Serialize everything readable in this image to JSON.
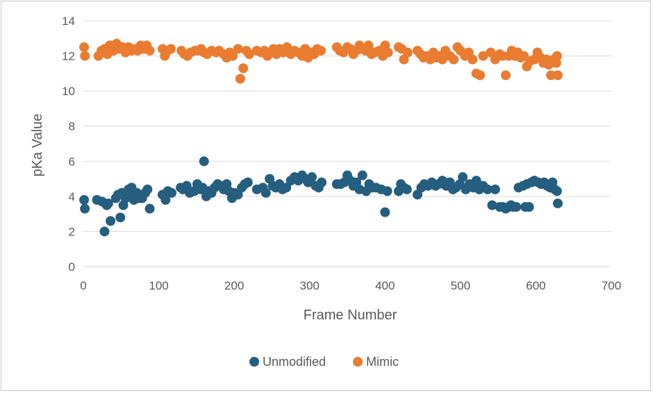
{
  "chart_data": {
    "type": "scatter",
    "title": "",
    "xlabel": "Frame Number",
    "ylabel": "pKa Value",
    "xlim": [
      0,
      700
    ],
    "ylim": [
      0,
      14
    ],
    "xticks": [
      0,
      100,
      200,
      300,
      400,
      500,
      600,
      700
    ],
    "yticks": [
      0,
      2,
      4,
      6,
      8,
      10,
      12,
      14
    ],
    "grid": "horizontal",
    "legend": "bottom",
    "colors": {
      "Unmodified": "#255e7e",
      "Mimic": "#e97c30"
    },
    "series": [
      {
        "name": "Unmodified",
        "points": [
          [
            1,
            3.8
          ],
          [
            2,
            3.3
          ],
          [
            18,
            3.8
          ],
          [
            25,
            3.7
          ],
          [
            28,
            2.0
          ],
          [
            31,
            3.5
          ],
          [
            33,
            3.6
          ],
          [
            36,
            2.6
          ],
          [
            43,
            3.9
          ],
          [
            46,
            4.1
          ],
          [
            49,
            2.8
          ],
          [
            51,
            4.2
          ],
          [
            53,
            3.5
          ],
          [
            56,
            3.9
          ],
          [
            60,
            4.4
          ],
          [
            62,
            4.2
          ],
          [
            64,
            4.5
          ],
          [
            67,
            3.8
          ],
          [
            71,
            4.2
          ],
          [
            74,
            3.9
          ],
          [
            78,
            3.9
          ],
          [
            82,
            4.2
          ],
          [
            85,
            4.4
          ],
          [
            88,
            3.3
          ],
          [
            105,
            4.1
          ],
          [
            109,
            3.8
          ],
          [
            112,
            4.3
          ],
          [
            117,
            4.2
          ],
          [
            129,
            4.5
          ],
          [
            132,
            4.4
          ],
          [
            137,
            4.6
          ],
          [
            141,
            4.2
          ],
          [
            147,
            4.3
          ],
          [
            151,
            4.7
          ],
          [
            155,
            4.4
          ],
          [
            158,
            4.5
          ],
          [
            160,
            6.0
          ],
          [
            163,
            4.0
          ],
          [
            166,
            4.3
          ],
          [
            170,
            4.2
          ],
          [
            174,
            4.5
          ],
          [
            178,
            4.7
          ],
          [
            182,
            4.6
          ],
          [
            186,
            4.4
          ],
          [
            190,
            4.7
          ],
          [
            193,
            4.3
          ],
          [
            197,
            3.9
          ],
          [
            200,
            4.2
          ],
          [
            205,
            4.1
          ],
          [
            210,
            4.5
          ],
          [
            214,
            4.7
          ],
          [
            218,
            4.8
          ],
          [
            230,
            4.4
          ],
          [
            238,
            4.5
          ],
          [
            242,
            4.2
          ],
          [
            247,
            5.0
          ],
          [
            251,
            4.6
          ],
          [
            255,
            4.5
          ],
          [
            260,
            4.7
          ],
          [
            264,
            4.4
          ],
          [
            269,
            4.5
          ],
          [
            275,
            4.9
          ],
          [
            280,
            5.1
          ],
          [
            285,
            4.9
          ],
          [
            290,
            5.2
          ],
          [
            294,
            5.0
          ],
          [
            298,
            4.8
          ],
          [
            303,
            5.1
          ],
          [
            308,
            4.6
          ],
          [
            312,
            4.5
          ],
          [
            316,
            4.8
          ],
          [
            336,
            4.7
          ],
          [
            341,
            4.7
          ],
          [
            346,
            4.8
          ],
          [
            350,
            5.2
          ],
          [
            354,
            4.9
          ],
          [
            358,
            4.6
          ],
          [
            362,
            4.8
          ],
          [
            366,
            4.4
          ],
          [
            370,
            5.2
          ],
          [
            375,
            4.3
          ],
          [
            379,
            4.7
          ],
          [
            383,
            4.5
          ],
          [
            388,
            4.5
          ],
          [
            395,
            4.4
          ],
          [
            400,
            3.1
          ],
          [
            403,
            4.3
          ],
          [
            418,
            4.3
          ],
          [
            421,
            4.7
          ],
          [
            425,
            4.5
          ],
          [
            429,
            4.4
          ],
          [
            443,
            4.1
          ],
          [
            448,
            4.5
          ],
          [
            452,
            4.7
          ],
          [
            457,
            4.6
          ],
          [
            462,
            4.8
          ],
          [
            467,
            4.6
          ],
          [
            471,
            4.7
          ],
          [
            476,
            4.9
          ],
          [
            481,
            4.6
          ],
          [
            486,
            4.8
          ],
          [
            490,
            4.4
          ],
          [
            494,
            4.5
          ],
          [
            499,
            4.7
          ],
          [
            503,
            5.1
          ],
          [
            507,
            4.4
          ],
          [
            512,
            4.7
          ],
          [
            517,
            4.5
          ],
          [
            521,
            4.9
          ],
          [
            525,
            4.4
          ],
          [
            530,
            4.6
          ],
          [
            536,
            4.4
          ],
          [
            542,
            3.5
          ],
          [
            546,
            4.4
          ],
          [
            552,
            3.4
          ],
          [
            556,
            3.4
          ],
          [
            560,
            3.3
          ],
          [
            564,
            3.4
          ],
          [
            567,
            3.5
          ],
          [
            570,
            3.4
          ],
          [
            574,
            3.4
          ],
          [
            577,
            4.5
          ],
          [
            583,
            4.6
          ],
          [
            586,
            3.4
          ],
          [
            588,
            4.7
          ],
          [
            591,
            3.4
          ],
          [
            594,
            4.8
          ],
          [
            598,
            4.9
          ],
          [
            603,
            4.8
          ],
          [
            607,
            4.7
          ],
          [
            611,
            4.8
          ],
          [
            615,
            4.6
          ],
          [
            619,
            4.5
          ],
          [
            622,
            4.8
          ],
          [
            625,
            4.4
          ],
          [
            628,
            4.3
          ],
          [
            629,
            3.6
          ]
        ]
      },
      {
        "name": "Mimic",
        "points": [
          [
            1,
            12.5
          ],
          [
            2,
            12.0
          ],
          [
            20,
            12.0
          ],
          [
            24,
            12.3
          ],
          [
            28,
            12.4
          ],
          [
            32,
            12.1
          ],
          [
            35,
            12.6
          ],
          [
            40,
            12.3
          ],
          [
            44,
            12.7
          ],
          [
            48,
            12.4
          ],
          [
            52,
            12.5
          ],
          [
            56,
            12.2
          ],
          [
            60,
            12.5
          ],
          [
            64,
            12.3
          ],
          [
            68,
            12.4
          ],
          [
            72,
            12.3
          ],
          [
            76,
            12.6
          ],
          [
            80,
            12.4
          ],
          [
            84,
            12.6
          ],
          [
            88,
            12.3
          ],
          [
            105,
            12.4
          ],
          [
            108,
            12.0
          ],
          [
            112,
            12.3
          ],
          [
            116,
            12.4
          ],
          [
            130,
            12.3
          ],
          [
            134,
            12.1
          ],
          [
            138,
            12.0
          ],
          [
            142,
            12.2
          ],
          [
            148,
            12.3
          ],
          [
            152,
            12.3
          ],
          [
            156,
            12.4
          ],
          [
            160,
            12.2
          ],
          [
            164,
            12.1
          ],
          [
            170,
            12.3
          ],
          [
            176,
            12.2
          ],
          [
            180,
            12.3
          ],
          [
            186,
            12.1
          ],
          [
            190,
            11.9
          ],
          [
            194,
            12.2
          ],
          [
            198,
            12.0
          ],
          [
            205,
            12.4
          ],
          [
            208,
            10.7
          ],
          [
            212,
            11.3
          ],
          [
            216,
            12.3
          ],
          [
            220,
            12.1
          ],
          [
            230,
            12.3
          ],
          [
            236,
            12.2
          ],
          [
            240,
            12.3
          ],
          [
            244,
            12.0
          ],
          [
            248,
            12.2
          ],
          [
            252,
            12.4
          ],
          [
            256,
            12.1
          ],
          [
            260,
            12.4
          ],
          [
            265,
            12.2
          ],
          [
            270,
            12.5
          ],
          [
            275,
            12.1
          ],
          [
            280,
            12.3
          ],
          [
            285,
            12.2
          ],
          [
            290,
            12.0
          ],
          [
            294,
            12.4
          ],
          [
            298,
            11.9
          ],
          [
            302,
            12.2
          ],
          [
            306,
            12.1
          ],
          [
            310,
            12.4
          ],
          [
            315,
            12.3
          ],
          [
            336,
            12.5
          ],
          [
            340,
            12.3
          ],
          [
            345,
            12.2
          ],
          [
            350,
            12.5
          ],
          [
            354,
            12.4
          ],
          [
            358,
            12.1
          ],
          [
            362,
            12.3
          ],
          [
            366,
            12.6
          ],
          [
            370,
            12.4
          ],
          [
            374,
            12.3
          ],
          [
            378,
            12.6
          ],
          [
            382,
            12.1
          ],
          [
            386,
            12.2
          ],
          [
            392,
            12.3
          ],
          [
            397,
            12.0
          ],
          [
            400,
            12.6
          ],
          [
            404,
            12.2
          ],
          [
            418,
            12.5
          ],
          [
            422,
            12.4
          ],
          [
            425,
            11.8
          ],
          [
            430,
            12.2
          ],
          [
            443,
            12.3
          ],
          [
            447,
            12.1
          ],
          [
            451,
            11.9
          ],
          [
            455,
            12.0
          ],
          [
            460,
            11.8
          ],
          [
            464,
            12.2
          ],
          [
            468,
            11.9
          ],
          [
            472,
            12.0
          ],
          [
            476,
            11.8
          ],
          [
            480,
            12.3
          ],
          [
            486,
            12.0
          ],
          [
            491,
            11.8
          ],
          [
            496,
            12.5
          ],
          [
            500,
            12.3
          ],
          [
            506,
            12.0
          ],
          [
            511,
            12.2
          ],
          [
            516,
            11.8
          ],
          [
            521,
            11.0
          ],
          [
            526,
            10.9
          ],
          [
            530,
            12.0
          ],
          [
            540,
            12.2
          ],
          [
            546,
            11.8
          ],
          [
            552,
            12.1
          ],
          [
            556,
            12.0
          ],
          [
            560,
            10.9
          ],
          [
            564,
            12.0
          ],
          [
            568,
            12.3
          ],
          [
            572,
            12.0
          ],
          [
            576,
            12.2
          ],
          [
            580,
            11.9
          ],
          [
            584,
            12.0
          ],
          [
            588,
            11.4
          ],
          [
            592,
            11.7
          ],
          [
            598,
            11.8
          ],
          [
            602,
            12.2
          ],
          [
            606,
            11.9
          ],
          [
            610,
            11.6
          ],
          [
            614,
            11.8
          ],
          [
            617,
            11.5
          ],
          [
            620,
            10.9
          ],
          [
            624,
            11.8
          ],
          [
            627,
            11.6
          ],
          [
            628,
            12.0
          ],
          [
            629,
            10.9
          ]
        ]
      }
    ]
  }
}
